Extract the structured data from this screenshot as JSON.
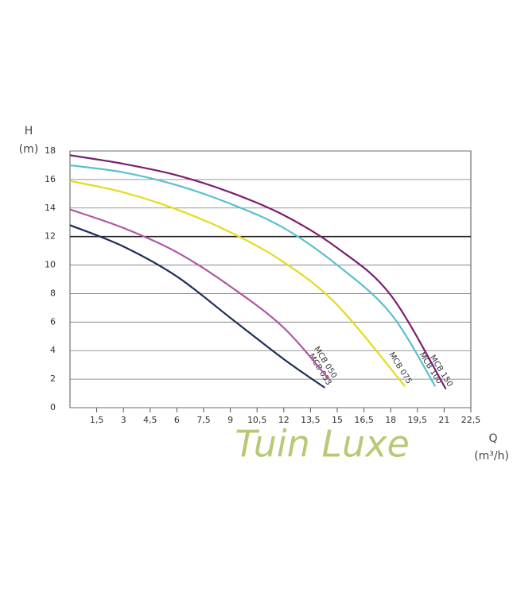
{
  "chart_data": {
    "type": "line",
    "y_label": "H",
    "y_unit": "(m)",
    "x_label": "Q",
    "x_unit": "(m³/h)",
    "watermark": "Tuin Luxe",
    "xlim": [
      0,
      22.5
    ],
    "ylim": [
      0,
      18
    ],
    "xticks": [
      {
        "value": 1.5,
        "label": "1,5"
      },
      3,
      {
        "value": 4.5,
        "label": "4,5"
      },
      6,
      {
        "value": 7.5,
        "label": "7,5"
      },
      9,
      {
        "value": 10.5,
        "label": "10,5"
      },
      12,
      {
        "value": 13.5,
        "label": "13,5"
      },
      15,
      {
        "value": 16.5,
        "label": "16,5"
      },
      18,
      {
        "value": 19.5,
        "label": "19,5"
      },
      21,
      {
        "value": 22.5,
        "label": "22,5"
      }
    ],
    "yticks": [
      0,
      2,
      4,
      6,
      8,
      10,
      12,
      14,
      16,
      18
    ],
    "grid": true,
    "reference_line": 12,
    "series": [
      {
        "name": "MCB 033",
        "color": "#1f2d5c",
        "x": [
          0,
          3,
          6,
          9,
          12,
          14.3
        ],
        "values": [
          12.8,
          11.3,
          9.2,
          6.3,
          3.4,
          1.4
        ]
      },
      {
        "name": "MCB 050",
        "color": "#b0579f",
        "x": [
          0,
          3,
          6,
          9,
          12,
          14.6
        ],
        "values": [
          13.9,
          12.6,
          10.9,
          8.5,
          5.6,
          1.9
        ]
      },
      {
        "name": "MCB 075",
        "color": "#e4dc1c",
        "x": [
          0,
          3,
          6,
          9,
          12,
          15,
          18.8
        ],
        "values": [
          15.9,
          15.1,
          13.9,
          12.3,
          10.2,
          7.2,
          1.5
        ]
      },
      {
        "name": "MCB 100",
        "color": "#5bbfcf",
        "x": [
          0,
          3,
          6,
          9,
          12,
          15,
          18,
          20.5
        ],
        "values": [
          17.0,
          16.5,
          15.6,
          14.3,
          12.6,
          10.0,
          6.6,
          1.5
        ]
      },
      {
        "name": "MCB 150",
        "color": "#7b1f6e",
        "x": [
          0,
          3,
          6,
          9,
          12,
          15,
          18,
          21.1
        ],
        "values": [
          17.7,
          17.1,
          16.3,
          15.1,
          13.5,
          11.2,
          7.9,
          1.3
        ]
      }
    ]
  }
}
